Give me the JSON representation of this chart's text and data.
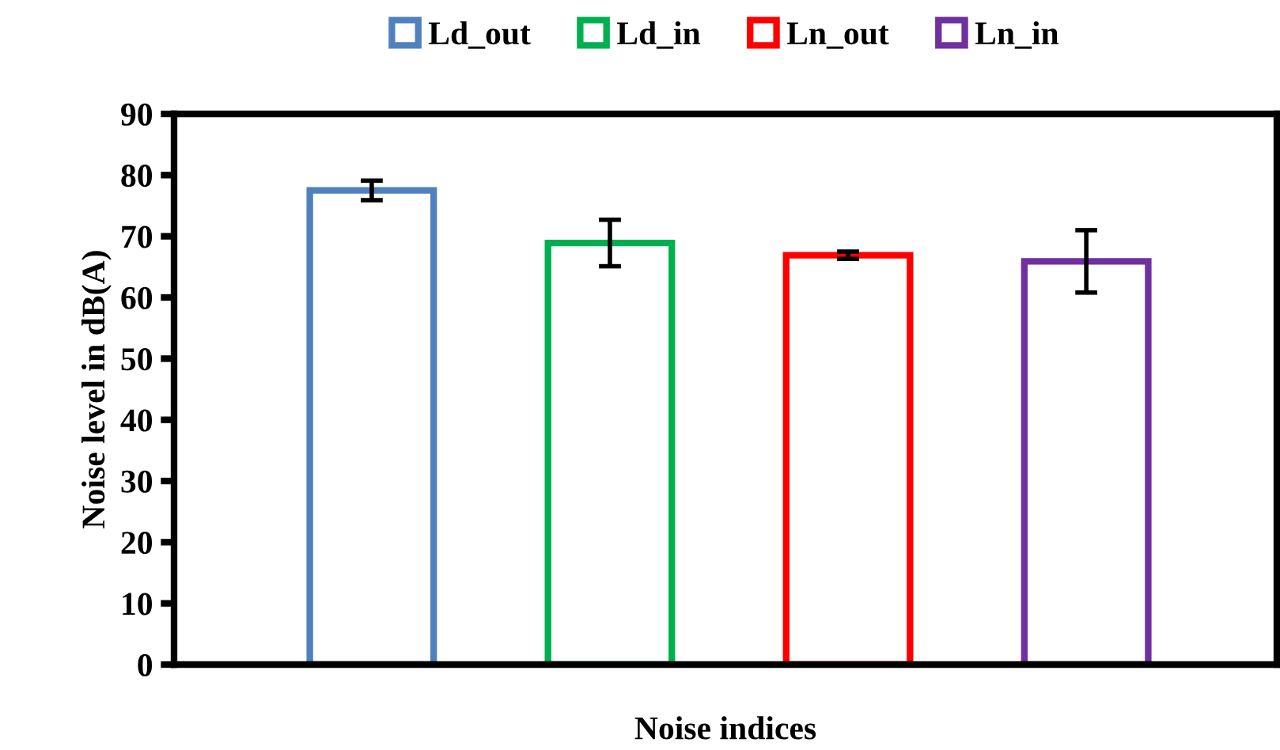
{
  "chart_data": {
    "type": "bar",
    "xlabel": "Noise indices",
    "ylabel": "Noise level in dB(A)",
    "categories": [
      null,
      null,
      null,
      null
    ],
    "series": [
      {
        "name": "Ld_out",
        "color": "#4f81bd",
        "values": [
          77.5,
          null,
          null,
          null
        ],
        "errors": [
          1.6,
          null,
          null,
          null
        ]
      },
      {
        "name": "Ld_in",
        "color": "#00b050",
        "values": [
          null,
          68.9,
          null,
          null
        ],
        "errors": [
          null,
          3.8,
          null,
          null
        ]
      },
      {
        "name": "Ln_out",
        "color": "#ff0000",
        "values": [
          null,
          null,
          66.9,
          null
        ],
        "errors": [
          null,
          null,
          0.6,
          null
        ]
      },
      {
        "name": "Ln_in",
        "color": "#7030a0",
        "values": [
          null,
          null,
          null,
          65.9
        ],
        "errors": [
          null,
          null,
          null,
          5.1
        ]
      }
    ],
    "ylim": [
      0,
      90
    ],
    "yticks": [
      0,
      10,
      20,
      30,
      40,
      50,
      60,
      70,
      80,
      90
    ],
    "grid": false,
    "legend": "top"
  }
}
